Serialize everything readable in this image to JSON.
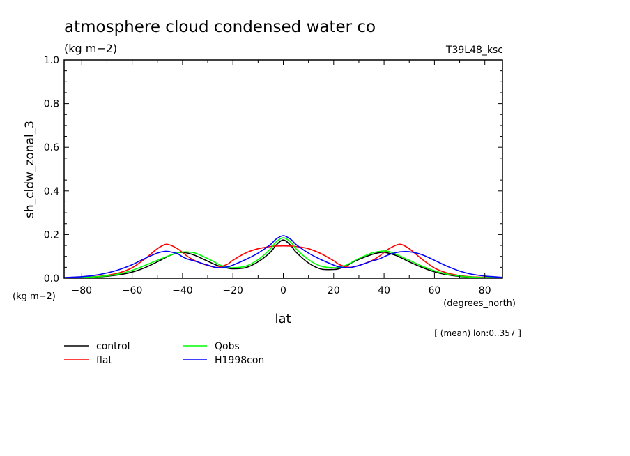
{
  "chart_data": {
    "type": "line",
    "title": "atmosphere cloud condensed water co",
    "title_units": "(kg m−2)",
    "run_label": "T39L48_ksc",
    "ylabel": "sh_cldw_zonal_3",
    "y_units": "(kg m−2)",
    "xlabel": "lat",
    "x_units": "(degrees_north)",
    "averaging_note": "[ (mean) lon:0..357 ]",
    "xlim": [
      -87,
      87
    ],
    "ylim": [
      0.0,
      1.0
    ],
    "x_ticks": [
      -80,
      -60,
      -40,
      -20,
      0,
      20,
      40,
      60,
      80
    ],
    "x_tick_labels": [
      "−80",
      "−60",
      "−40",
      "−20",
      "0",
      "20",
      "40",
      "60",
      "80"
    ],
    "y_ticks": [
      0.0,
      0.2,
      0.4,
      0.6,
      0.8,
      1.0
    ],
    "y_tick_labels": [
      "0.0",
      "0.2",
      "0.4",
      "0.6",
      "0.8",
      "1.0"
    ],
    "grid": false,
    "legend_position": "bottom-left",
    "x": [
      -87,
      -80,
      -75,
      -70,
      -65,
      -60,
      -55,
      -50,
      -47,
      -45,
      -42,
      -40,
      -38,
      -35,
      -30,
      -27,
      -25,
      -22,
      -20,
      -15,
      -10,
      -5,
      -3,
      0,
      3,
      5,
      10,
      15,
      20,
      22,
      25,
      27,
      30,
      35,
      38,
      40,
      42,
      45,
      47,
      50,
      55,
      60,
      65,
      70,
      75,
      80,
      87
    ],
    "series": [
      {
        "name": "control",
        "color": "#000000",
        "values": [
          0.002,
          0.003,
          0.005,
          0.009,
          0.016,
          0.028,
          0.048,
          0.075,
          0.093,
          0.104,
          0.116,
          0.118,
          0.115,
          0.104,
          0.078,
          0.062,
          0.054,
          0.046,
          0.043,
          0.048,
          0.075,
          0.12,
          0.15,
          0.175,
          0.15,
          0.12,
          0.07,
          0.042,
          0.04,
          0.043,
          0.055,
          0.07,
          0.086,
          0.108,
          0.117,
          0.118,
          0.114,
          0.103,
          0.092,
          0.075,
          0.05,
          0.029,
          0.016,
          0.008,
          0.004,
          0.003,
          0.002
        ]
      },
      {
        "name": "flat",
        "color": "#ff0000",
        "values": [
          0.002,
          0.004,
          0.007,
          0.013,
          0.025,
          0.048,
          0.088,
          0.135,
          0.154,
          0.152,
          0.135,
          0.118,
          0.1,
          0.08,
          0.058,
          0.05,
          0.052,
          0.065,
          0.082,
          0.115,
          0.135,
          0.145,
          0.147,
          0.148,
          0.147,
          0.145,
          0.135,
          0.112,
          0.08,
          0.064,
          0.052,
          0.05,
          0.058,
          0.08,
          0.1,
          0.118,
          0.135,
          0.152,
          0.154,
          0.135,
          0.088,
          0.047,
          0.024,
          0.012,
          0.006,
          0.004,
          0.002
        ]
      },
      {
        "name": "Qobs",
        "color": "#00ff00",
        "values": [
          0.002,
          0.004,
          0.006,
          0.011,
          0.02,
          0.036,
          0.058,
          0.082,
          0.096,
          0.105,
          0.116,
          0.12,
          0.12,
          0.115,
          0.09,
          0.072,
          0.06,
          0.05,
          0.048,
          0.055,
          0.085,
          0.135,
          0.165,
          0.185,
          0.165,
          0.135,
          0.085,
          0.055,
          0.048,
          0.05,
          0.06,
          0.072,
          0.09,
          0.115,
          0.122,
          0.125,
          0.122,
          0.108,
          0.098,
          0.082,
          0.056,
          0.034,
          0.019,
          0.01,
          0.005,
          0.003,
          0.002
        ]
      },
      {
        "name": "H1998con",
        "color": "#0000ff",
        "values": [
          0.003,
          0.007,
          0.013,
          0.024,
          0.04,
          0.062,
          0.09,
          0.115,
          0.123,
          0.121,
          0.112,
          0.098,
          0.088,
          0.078,
          0.06,
          0.05,
          0.048,
          0.052,
          0.06,
          0.085,
          0.115,
          0.155,
          0.178,
          0.195,
          0.178,
          0.155,
          0.115,
          0.085,
          0.06,
          0.052,
          0.048,
          0.05,
          0.058,
          0.078,
          0.088,
          0.098,
          0.108,
          0.118,
          0.121,
          0.121,
          0.108,
          0.082,
          0.055,
          0.033,
          0.018,
          0.01,
          0.004
        ]
      }
    ]
  }
}
